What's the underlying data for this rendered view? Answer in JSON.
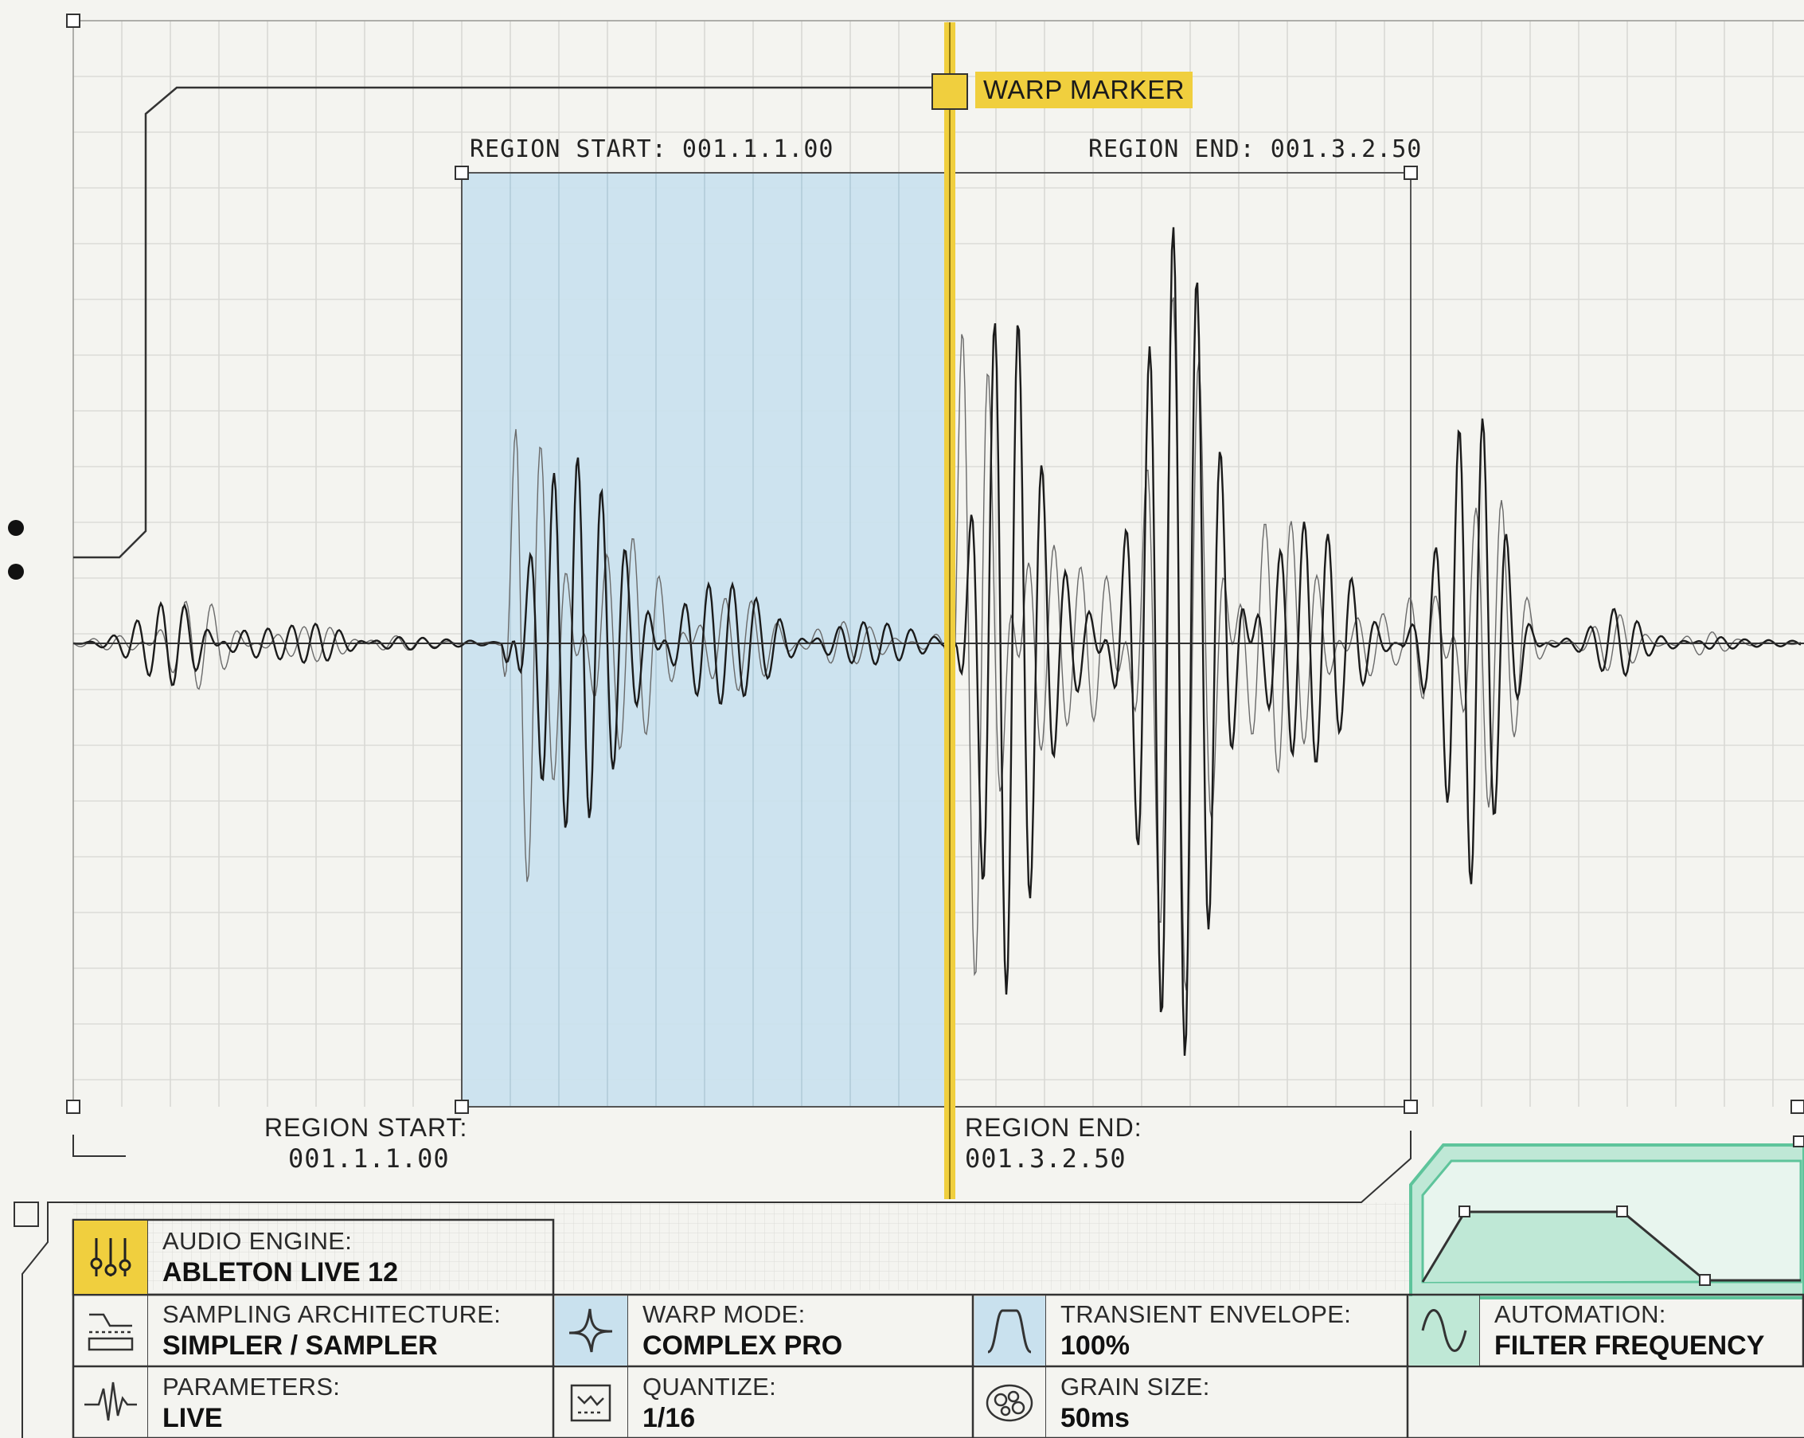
{
  "warp_marker": {
    "label": "WARP MARKER"
  },
  "region": {
    "start_label": "REGION START:",
    "start_value": "001.1.1.00",
    "end_label": "REGION END:",
    "end_value": "001.3.2.50",
    "top_start_text": "REGION START: 001.1.1.00",
    "top_end_text": "REGION END: 001.3.2.50"
  },
  "info_panel": {
    "audio_engine": {
      "key": "AUDIO ENGINE:",
      "value": "ABLETON LIVE 12",
      "icon": "mixer-sliders-icon"
    },
    "sampling": {
      "key": "SAMPLING ARCHITECTURE:",
      "value": "SIMPLER / SAMPLER",
      "icon": "sampler-waveform-icon"
    },
    "parameters": {
      "key": "PARAMETERS:",
      "value": "LIVE",
      "icon": "waveform-icon"
    },
    "warp_mode": {
      "key": "WARP MODE:",
      "value": "COMPLEX PRO",
      "icon": "warp-curve-icon"
    },
    "quantize": {
      "key": "QUANTIZE:",
      "value": "1/16",
      "icon": "quantize-grid-icon"
    },
    "transient": {
      "key": "TRANSIENT ENVELOPE:",
      "value": "100%",
      "icon": "envelope-shape-icon"
    },
    "grain": {
      "key": "GRAIN SIZE:",
      "value": "50ms",
      "icon": "grain-cluster-icon"
    },
    "automation": {
      "key": "AUTOMATION:",
      "value": "FILTER FREQUENCY",
      "icon": "sine-wave-icon"
    }
  },
  "colors": {
    "background": "#f4f4f0",
    "grid": "#cfcfcb",
    "region_fill": "#c9e1ee",
    "warp_yellow": "#f0cf3e",
    "automation_green": "#bfe8d6",
    "automation_stroke": "#5ec49b",
    "ink": "#1b1b1b"
  }
}
